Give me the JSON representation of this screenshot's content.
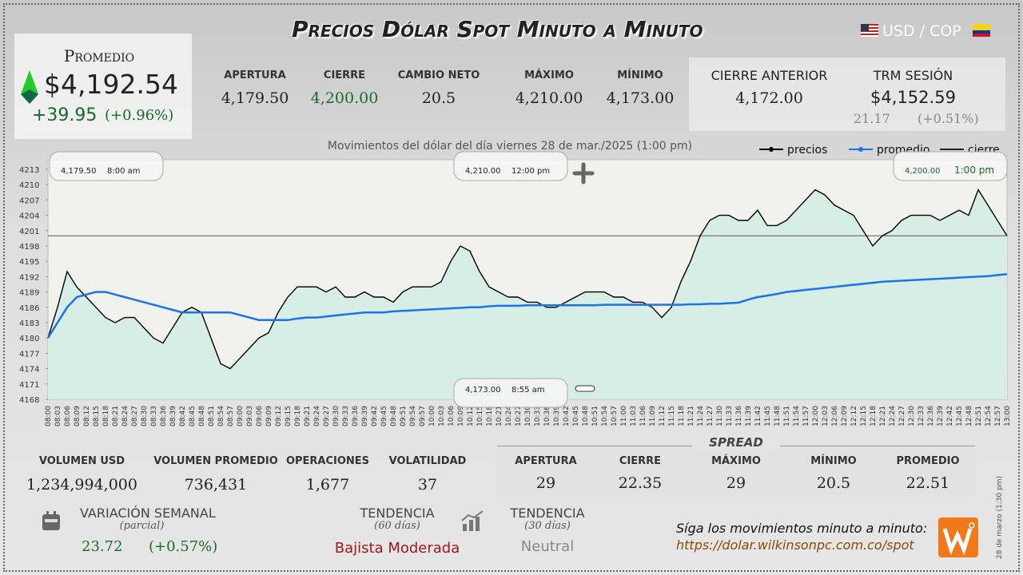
{
  "header": {
    "title": "Precios Dólar Spot Minuto a Minuto",
    "pair": "USD / COP"
  },
  "average": {
    "label": "Promedio",
    "value": "$4,192.54",
    "change": "+39.95",
    "change_pct": "(+0.96%)"
  },
  "session": [
    {
      "label": "APERTURA",
      "value": "4,179.50"
    },
    {
      "label": "CIERRE",
      "value": "4,200.00"
    },
    {
      "label": "CAMBIO NETO",
      "value": "20.5"
    },
    {
      "label": "MÁXIMO",
      "value": "4,210.00"
    },
    {
      "label": "MÍNIMO",
      "value": "4,173.00"
    }
  ],
  "previous_close": {
    "label": "CIERRE ANTERIOR",
    "value": "4,172.00"
  },
  "trm": {
    "label": "TRM SESIÓN",
    "value": "$4,152.59",
    "change": "21.17",
    "change_pct": "(+0.51%)"
  },
  "chart_data": {
    "type": "line",
    "title": "Movimientos del dólar del día viernes 28 de mar./2025 (1:00 pm)",
    "categories": [
      "08:00",
      "08:03",
      "08:06",
      "08:09",
      "08:12",
      "08:15",
      "08:18",
      "08:21",
      "08:24",
      "08:27",
      "08:30",
      "08:33",
      "08:36",
      "08:39",
      "08:42",
      "08:45",
      "08:48",
      "08:51",
      "08:54",
      "08:57",
      "09:00",
      "09:03",
      "09:06",
      "09:09",
      "09:12",
      "09:15",
      "09:18",
      "09:21",
      "09:24",
      "09:27",
      "09:30",
      "09:33",
      "09:36",
      "09:39",
      "09:42",
      "09:45",
      "09:48",
      "09:51",
      "09:54",
      "09:57",
      "10:00",
      "10:03",
      "10:06",
      "10:09",
      "10:12",
      "10:15",
      "10:18",
      "10:21",
      "10:24",
      "10:27",
      "10:30",
      "10:33",
      "10:36",
      "10:39",
      "10:42",
      "10:45",
      "10:48",
      "10:51",
      "10:54",
      "10:57",
      "11:00",
      "11:03",
      "11:06",
      "11:09",
      "11:12",
      "11:15",
      "11:18",
      "11:21",
      "11:24",
      "11:27",
      "11:30",
      "11:33",
      "11:36",
      "11:39",
      "11:42",
      "11:45",
      "11:48",
      "11:51",
      "11:54",
      "11:57",
      "12:00",
      "12:03",
      "12:06",
      "12:09",
      "12:12",
      "12:15",
      "12:18",
      "12:21",
      "12:24",
      "12:27",
      "12:30",
      "12:33",
      "12:36",
      "12:39",
      "12:42",
      "12:45",
      "12:48",
      "12:51",
      "12:54",
      "12:57",
      "13:00"
    ],
    "series": [
      {
        "name": "precios",
        "color": "#000000",
        "values": [
          4180,
          4186,
          4193,
          4190,
          4188,
          4186,
          4184,
          4183,
          4184,
          4184,
          4182,
          4180,
          4179,
          4182,
          4185,
          4186,
          4185,
          4180,
          4175,
          4174,
          4176,
          4178,
          4180,
          4181,
          4185,
          4188,
          4190,
          4190,
          4190,
          4189,
          4190,
          4188,
          4188,
          4189,
          4188,
          4188,
          4187,
          4189,
          4190,
          4190,
          4190,
          4191,
          4195,
          4198,
          4197,
          4193,
          4190,
          4189,
          4188,
          4188,
          4187,
          4187,
          4186,
          4186,
          4187,
          4188,
          4189,
          4189,
          4189,
          4188,
          4188,
          4187,
          4187,
          4186,
          4184,
          4186,
          4191,
          4195,
          4200,
          4203,
          4204,
          4204,
          4203,
          4203,
          4205,
          4202,
          4202,
          4203,
          4205,
          4207,
          4209,
          4208,
          4206,
          4205,
          4204,
          4201,
          4198,
          4200,
          4201,
          4203,
          4204,
          4204,
          4204,
          4203,
          4204,
          4205,
          4204,
          4209,
          4206,
          4203,
          4200
        ]
      },
      {
        "name": "promedio",
        "color": "#1a73e8",
        "values": [
          4180,
          4183,
          4186,
          4188,
          4188.5,
          4189,
          4189,
          4188.5,
          4188,
          4187.5,
          4187,
          4186.5,
          4186,
          4185.5,
          4185,
          4185,
          4185,
          4185,
          4185,
          4185,
          4184.5,
          4184,
          4183.5,
          4183.5,
          4183.5,
          4183.5,
          4183.8,
          4184,
          4184,
          4184.2,
          4184.4,
          4184.6,
          4184.8,
          4185,
          4185,
          4185,
          4185.2,
          4185.3,
          4185.4,
          4185.5,
          4185.6,
          4185.7,
          4185.8,
          4185.9,
          4186,
          4186,
          4186.2,
          4186.3,
          4186.3,
          4186.3,
          4186.4,
          4186.4,
          4186.4,
          4186.4,
          4186.4,
          4186.4,
          4186.4,
          4186.4,
          4186.5,
          4186.5,
          4186.5,
          4186.5,
          4186.5,
          4186.5,
          4186.5,
          4186.5,
          4186.5,
          4186.6,
          4186.6,
          4186.7,
          4186.7,
          4186.8,
          4186.9,
          4187.5,
          4188,
          4188.3,
          4188.6,
          4189,
          4189.2,
          4189.4,
          4189.6,
          4189.8,
          4190,
          4190.2,
          4190.4,
          4190.6,
          4190.8,
          4191,
          4191.1,
          4191.2,
          4191.3,
          4191.4,
          4191.5,
          4191.6,
          4191.7,
          4191.8,
          4191.9,
          4192,
          4192.1,
          4192.3,
          4192.5
        ]
      }
    ],
    "reference": {
      "name": "cierre",
      "value": 4200,
      "color": "#555555"
    },
    "ylim": [
      4168,
      4213
    ],
    "yticks": [
      4168,
      4171,
      4174,
      4177,
      4180,
      4183,
      4186,
      4189,
      4192,
      4195,
      4198,
      4201,
      4204,
      4207,
      4210,
      4213
    ],
    "area_color": "#d6eee6",
    "legend": "top-right",
    "annotations": [
      {
        "price": "4,179.50",
        "time": "8:00 am"
      },
      {
        "price": "4,210.00",
        "time": "12:00 pm"
      },
      {
        "price": "4,200.00",
        "time": "1:00 pm"
      },
      {
        "price": "4,173.00",
        "time": "8:55 am"
      }
    ]
  },
  "volume": [
    {
      "label": "VOLUMEN USD",
      "value": "1,234,994,000"
    },
    {
      "label": "VOLUMEN PROMEDIO",
      "value": "736,431"
    },
    {
      "label": "OPERACIONES",
      "value": "1,677"
    },
    {
      "label": "VOLATILIDAD",
      "value": "37"
    }
  ],
  "spread": {
    "title": "SPREAD",
    "items": [
      {
        "label": "APERTURA",
        "value": "29"
      },
      {
        "label": "CIERRE",
        "value": "22.35"
      },
      {
        "label": "MÁXIMO",
        "value": "29"
      },
      {
        "label": "MÍNIMO",
        "value": "20.5"
      },
      {
        "label": "PROMEDIO",
        "value": "22.51"
      }
    ]
  },
  "weekly": {
    "label": "VARIACIÓN SEMANAL",
    "note": "(parcial)",
    "change": "23.72",
    "change_pct": "(+0.57%)"
  },
  "trend_60": {
    "label": "TENDENCIA",
    "note": "(60 días)",
    "value": "Bajista Moderada"
  },
  "trend_30": {
    "label": "TENDENCIA",
    "note": "(30 días)",
    "value": "Neutral"
  },
  "footer": {
    "text": "Síga los movimientos minuto a minuto:",
    "url": "https://dolar.wilkinsonpc.com.co/spot",
    "stamp": "28 de marzo (1:30 pm)"
  }
}
